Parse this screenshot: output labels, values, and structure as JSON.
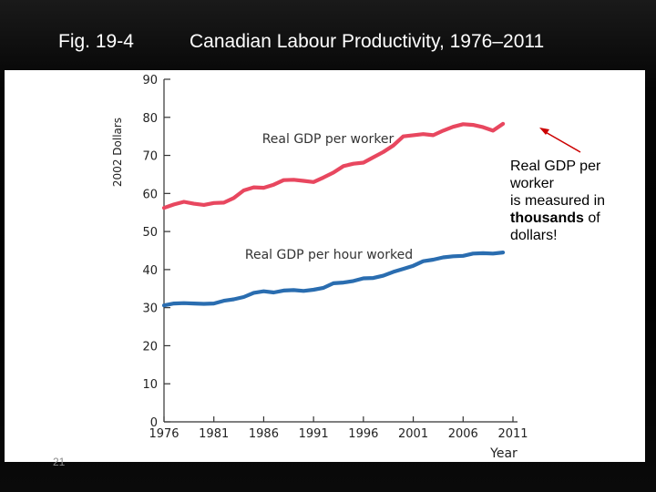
{
  "slide": {
    "figure_label": "Fig. 19-4",
    "title": "Canadian Labour Productivity, 1976–2011",
    "slide_number": "21"
  },
  "annotation": {
    "line1": "Real GDP per",
    "line2": "worker",
    "line3": "is measured in",
    "emphasis": "thousands",
    "line4_rest": " of",
    "line5": "dollars!"
  },
  "colors": {
    "gdp_per_worker": "#e8475f",
    "gdp_per_hour": "#2a6db0",
    "arrow": "#cc0000",
    "axis": "#333333"
  },
  "chart_data": {
    "type": "line",
    "title": "Canadian Labour Productivity, 1976–2011",
    "xlabel": "Year",
    "ylabel": "2002 Dollars",
    "xlim": [
      1976,
      2011
    ],
    "ylim": [
      0,
      90
    ],
    "xticks": [
      1976,
      1981,
      1986,
      1991,
      1996,
      2001,
      2006,
      2011
    ],
    "yticks": [
      0,
      10,
      20,
      30,
      40,
      50,
      60,
      70,
      80,
      90
    ],
    "x": [
      1976,
      1977,
      1978,
      1979,
      1980,
      1981,
      1982,
      1983,
      1984,
      1985,
      1986,
      1987,
      1988,
      1989,
      1990,
      1991,
      1992,
      1993,
      1994,
      1995,
      1996,
      1997,
      1998,
      1999,
      2000,
      2001,
      2002,
      2003,
      2004,
      2005,
      2006,
      2007,
      2008,
      2009,
      2010
    ],
    "series": [
      {
        "name": "Real GDP per worker",
        "label_text": "Real GDP per worker",
        "values": [
          56.2,
          57.1,
          57.8,
          57.3,
          57.0,
          57.5,
          57.6,
          58.8,
          60.8,
          61.6,
          61.5,
          62.3,
          63.5,
          63.6,
          63.3,
          63.0,
          64.2,
          65.5,
          67.2,
          67.8,
          68.1,
          69.5,
          70.9,
          72.6,
          75.0,
          75.3,
          75.6,
          75.3,
          76.5,
          77.5,
          78.2,
          78.0,
          77.4,
          76.5,
          78.3
        ]
      },
      {
        "name": "Real GDP per hour worked",
        "label_text": "Real GDP per hour worked",
        "values": [
          30.6,
          31.1,
          31.2,
          31.1,
          31.0,
          31.1,
          31.8,
          32.2,
          32.8,
          33.9,
          34.3,
          34.0,
          34.5,
          34.6,
          34.4,
          34.7,
          35.2,
          36.4,
          36.6,
          37.0,
          37.7,
          37.8,
          38.4,
          39.4,
          40.2,
          41.0,
          42.2,
          42.6,
          43.2,
          43.5,
          43.6,
          44.2,
          44.3,
          44.2,
          44.5
        ]
      }
    ]
  }
}
